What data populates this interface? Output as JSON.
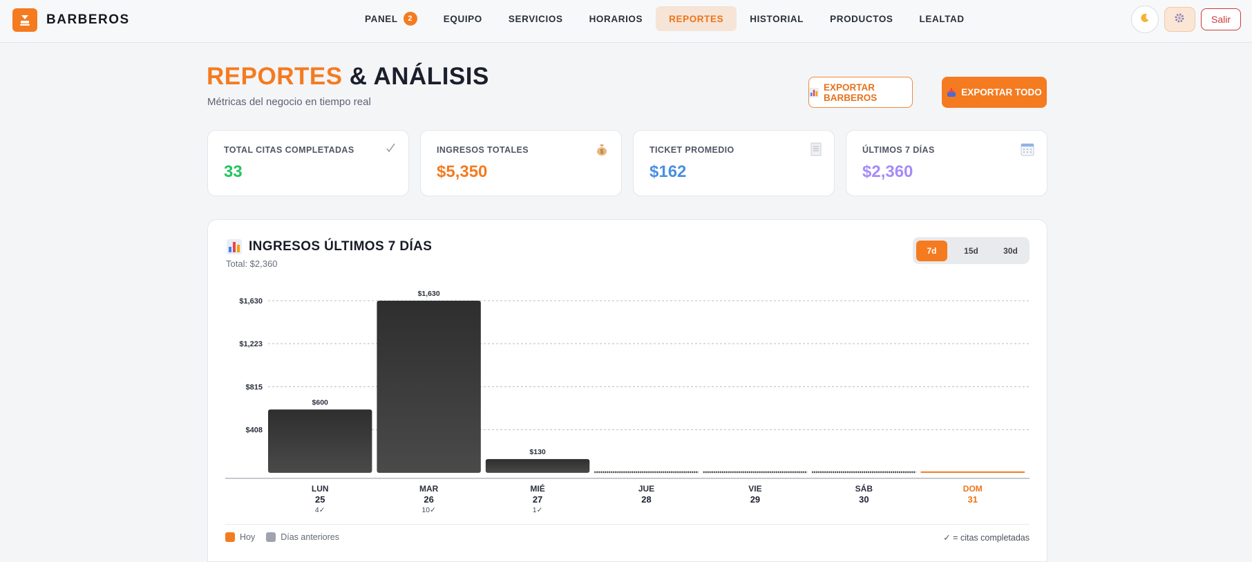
{
  "brand": {
    "name": "BARBEROS",
    "icon": "barber-chair-icon"
  },
  "nav": {
    "items": [
      {
        "label": "PANEL",
        "badge": "2"
      },
      {
        "label": "EQUIPO"
      },
      {
        "label": "SERVICIOS"
      },
      {
        "label": "HORARIOS"
      },
      {
        "label": "REPORTES",
        "active": true
      },
      {
        "label": "HISTORIAL"
      },
      {
        "label": "PRODUCTOS"
      },
      {
        "label": "LEALTAD"
      }
    ],
    "logout_label": "Salir"
  },
  "header": {
    "title_accent": "REPORTES",
    "title_rest": "& ANÁLISIS",
    "subtitle": "Métricas del negocio en tiempo real",
    "export_barbers_label": "EXPORTAR BARBEROS",
    "export_all_label": "EXPORTAR TODO"
  },
  "stats": [
    {
      "label": "TOTAL CITAS COMPLETADAS",
      "value": "33",
      "color": "#22c55e",
      "icon": "check-icon"
    },
    {
      "label": "INGRESOS TOTALES",
      "value": "$5,350",
      "color": "#f47b20",
      "icon": "money-bag-icon"
    },
    {
      "label": "TICKET PROMEDIO",
      "value": "$162",
      "color": "#4a90e2",
      "icon": "receipt-icon"
    },
    {
      "label": "ÚLTIMOS 7 DÍAS",
      "value": "$2,360",
      "color": "#a78bfa",
      "icon": "calendar-icon"
    }
  ],
  "chart_card": {
    "title": "INGRESOS ÚLTIMOS 7 DÍAS",
    "subtitle": "Total: $2,360",
    "ranges": [
      "7d",
      "15d",
      "30d"
    ],
    "selected_range": "7d",
    "legend": {
      "today": "Hoy",
      "previous": "Días anteriores",
      "note": "✓ = citas completadas"
    }
  },
  "chart_data": {
    "type": "bar",
    "title": "INGRESOS ÚLTIMOS 7 DÍAS",
    "categories": [
      "LUN",
      "MAR",
      "MIÉ",
      "JUE",
      "VIE",
      "SÁB",
      "DOM"
    ],
    "days": [
      "25",
      "26",
      "27",
      "28",
      "29",
      "30",
      "31"
    ],
    "values": [
      600,
      1630,
      130,
      0,
      0,
      0,
      0
    ],
    "value_labels": [
      "$600",
      "$1,630",
      "$130",
      "",
      "",
      "",
      ""
    ],
    "completed": [
      "4✓",
      "10✓",
      "1✓",
      "",
      "",
      "",
      ""
    ],
    "today_index": 6,
    "yticks": [
      408,
      815,
      1223,
      1630
    ],
    "ytick_labels": [
      "$408",
      "$815",
      "$1,223",
      "$1,630"
    ],
    "ylim": [
      0,
      1630
    ],
    "grid": true,
    "colors": {
      "bar": "#3a3a3a",
      "today": "#f47b20"
    }
  }
}
